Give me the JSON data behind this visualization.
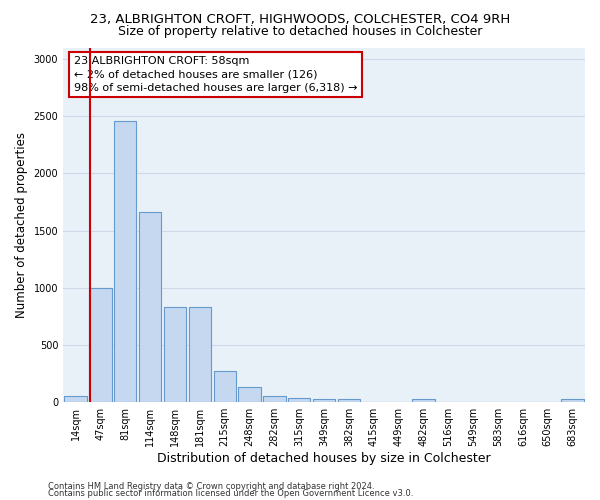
{
  "title1": "23, ALBRIGHTON CROFT, HIGHWOODS, COLCHESTER, CO4 9RH",
  "title2": "Size of property relative to detached houses in Colchester",
  "xlabel": "Distribution of detached houses by size in Colchester",
  "ylabel": "Number of detached properties",
  "footnote1": "Contains HM Land Registry data © Crown copyright and database right 2024.",
  "footnote2": "Contains public sector information licensed under the Open Government Licence v3.0.",
  "bar_labels": [
    "14sqm",
    "47sqm",
    "81sqm",
    "114sqm",
    "148sqm",
    "181sqm",
    "215sqm",
    "248sqm",
    "282sqm",
    "315sqm",
    "349sqm",
    "382sqm",
    "415sqm",
    "449sqm",
    "482sqm",
    "516sqm",
    "549sqm",
    "583sqm",
    "616sqm",
    "650sqm",
    "683sqm"
  ],
  "bar_values": [
    55,
    1000,
    2460,
    1660,
    830,
    830,
    270,
    130,
    55,
    40,
    30,
    25,
    0,
    0,
    30,
    0,
    0,
    0,
    0,
    0,
    30
  ],
  "bar_color": "#c5d8f0",
  "bar_edge_color": "#6699cc",
  "annotation_box_text": "23 ALBRIGHTON CROFT: 58sqm\n← 2% of detached houses are smaller (126)\n98% of semi-detached houses are larger (6,318) →",
  "annotation_box_color": "#ffffff",
  "annotation_box_edge_color": "#cc0000",
  "vline_color": "#cc0000",
  "vline_x": 0.575,
  "ylim": [
    0,
    3100
  ],
  "yticks": [
    0,
    500,
    1000,
    1500,
    2000,
    2500,
    3000
  ],
  "grid_color": "#d0d8e8",
  "bg_color": "#e8f0f8",
  "title1_fontsize": 9.5,
  "title2_fontsize": 9,
  "xlabel_fontsize": 9,
  "ylabel_fontsize": 8.5,
  "tick_fontsize": 7,
  "annotation_fontsize": 8,
  "footnote_fontsize": 6
}
